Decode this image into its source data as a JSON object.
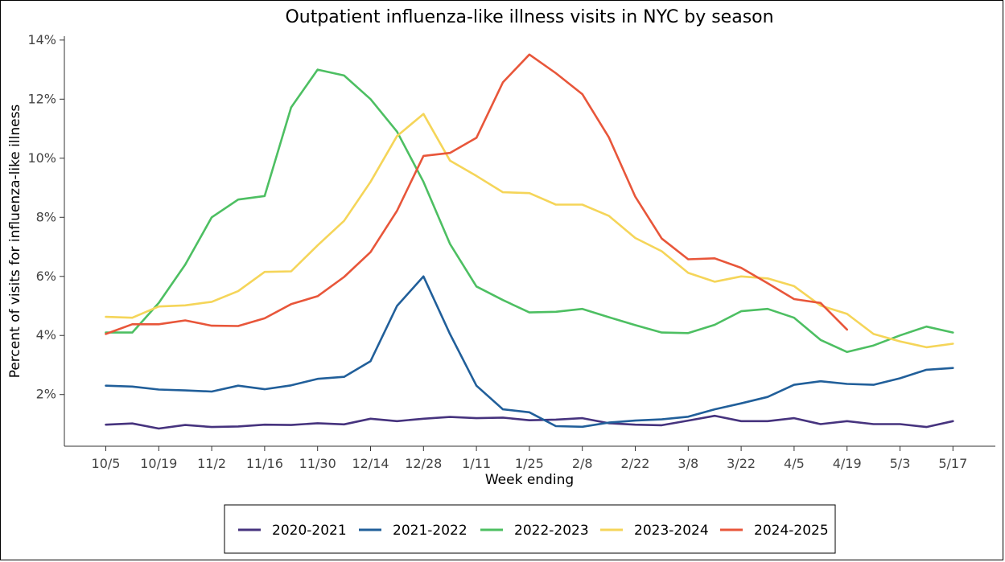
{
  "chart_data": {
    "type": "line",
    "title": "Outpatient influenza-like illness visits in NYC by season",
    "xlabel": "Week ending",
    "ylabel": "Percent of visits for influenza-like illness",
    "x_tick_labels": [
      "10/5",
      "10/19",
      "11/2",
      "11/16",
      "11/30",
      "12/14",
      "12/28",
      "1/11",
      "1/25",
      "2/8",
      "2/22",
      "3/8",
      "3/22",
      "4/5",
      "4/19",
      "5/3",
      "5/17"
    ],
    "y_ticks": [
      2,
      4,
      6,
      8,
      10,
      12,
      14
    ],
    "y_tick_labels": [
      "2%",
      "4%",
      "6%",
      "8%",
      "10%",
      "12%",
      "14%"
    ],
    "ylim": [
      0.0,
      14.0
    ],
    "grid": false,
    "legend_position": "bottom",
    "series": [
      {
        "name": "2020-2021",
        "color": "#46337E",
        "values": [
          0.98,
          1.02,
          0.85,
          0.97,
          0.9,
          0.92,
          0.98,
          0.97,
          1.03,
          0.99,
          1.18,
          1.1,
          1.18,
          1.24,
          1.2,
          1.22,
          1.13,
          1.15,
          1.2,
          1.03,
          0.98,
          0.96,
          1.12,
          1.28,
          1.1,
          1.1,
          1.2,
          1.0,
          1.1,
          1.0,
          1.0,
          0.9,
          1.1
        ]
      },
      {
        "name": "2021-2022",
        "color": "#215F9A",
        "values": [
          2.3,
          2.27,
          2.17,
          2.14,
          2.1,
          2.3,
          2.18,
          2.31,
          2.53,
          2.6,
          3.13,
          5.0,
          6.0,
          4.05,
          2.3,
          1.5,
          1.4,
          0.93,
          0.91,
          1.05,
          1.12,
          1.16,
          1.25,
          1.5,
          1.7,
          1.92,
          2.33,
          2.45,
          2.36,
          2.33,
          2.55,
          2.84,
          2.9
        ]
      },
      {
        "name": "2022-2023",
        "color": "#4DBF62",
        "values": [
          4.1,
          4.1,
          5.1,
          6.4,
          8.0,
          8.6,
          8.72,
          11.72,
          13.0,
          12.8,
          12.0,
          10.9,
          9.2,
          7.1,
          5.66,
          5.2,
          4.78,
          4.8,
          4.9,
          4.62,
          4.35,
          4.1,
          4.08,
          4.36,
          4.82,
          4.9,
          4.6,
          3.85,
          3.44,
          3.66,
          4.0,
          4.3,
          4.1
        ]
      },
      {
        "name": "2023-2024",
        "color": "#F5D559",
        "values": [
          4.63,
          4.6,
          4.98,
          5.02,
          5.14,
          5.5,
          6.15,
          6.17,
          7.05,
          7.88,
          9.2,
          10.75,
          11.5,
          9.92,
          9.4,
          8.85,
          8.82,
          8.43,
          8.43,
          8.05,
          7.3,
          6.85,
          6.12,
          5.82,
          6.0,
          5.93,
          5.67,
          5.01,
          4.73,
          4.05,
          3.8,
          3.6,
          3.72
        ]
      },
      {
        "name": "2024-2025",
        "color": "#E8563A",
        "values": [
          4.05,
          4.38,
          4.38,
          4.51,
          4.33,
          4.32,
          4.58,
          5.06,
          5.33,
          5.98,
          6.82,
          8.22,
          10.08,
          10.18,
          10.69,
          12.57,
          13.51,
          12.88,
          12.17,
          10.71,
          8.7,
          7.28,
          6.58,
          6.61,
          6.29,
          5.77,
          5.23,
          5.1,
          4.2
        ]
      }
    ]
  }
}
